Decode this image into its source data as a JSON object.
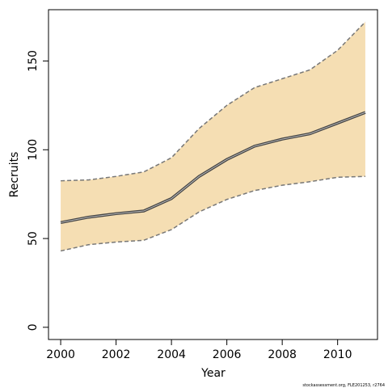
{
  "chart_data": {
    "type": "line",
    "x_label": "Year",
    "y_label": "Recruits",
    "x": [
      2000,
      2001,
      2002,
      2003,
      2004,
      2005,
      2006,
      2007,
      2008,
      2009,
      2010,
      2011
    ],
    "values": [
      59,
      62,
      64,
      65.5,
      72.5,
      85,
      94.5,
      102,
      106,
      109,
      115,
      121
    ],
    "upper": [
      82.5,
      83,
      85,
      87.5,
      95.5,
      112,
      125,
      135,
      140,
      145,
      156,
      172
    ],
    "lower": [
      43,
      46.5,
      48,
      49,
      55,
      65,
      72,
      77,
      80,
      82,
      84.5,
      85
    ],
    "color": "#444444",
    "band_color": "#f5deb3",
    "bound_color": "#777777",
    "xlim": [
      1999.56,
      2011.44
    ],
    "xticks": [
      2000,
      2002,
      2004,
      2006,
      2008,
      2010
    ],
    "ylim": [
      -6.88,
      178.88
    ],
    "yticks": [
      0,
      50,
      100,
      150
    ],
    "footer": "stockassessment.org, FLE201253, r2764"
  }
}
